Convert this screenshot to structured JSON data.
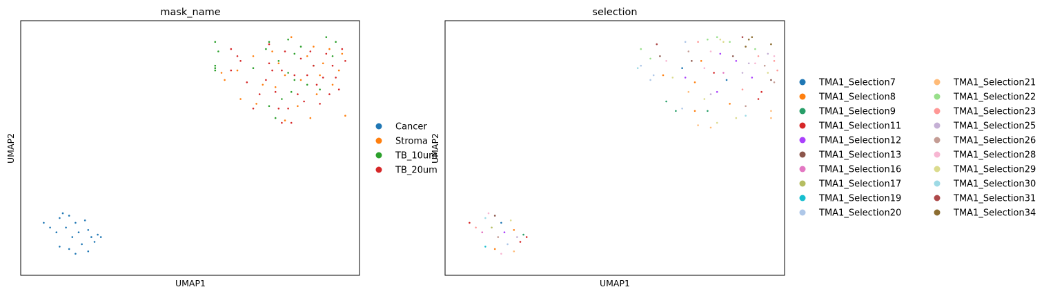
{
  "palette": {
    "Cancer": "#1f77b4",
    "Stroma": "#ff7f0e",
    "TB_10um": "#2ca02c",
    "TB_20um": "#d62728",
    "TMA1_Selection7": "#1f77b4",
    "TMA1_Selection8": "#ff7f0e",
    "TMA1_Selection9": "#279e68",
    "TMA1_Selection11": "#d62728",
    "TMA1_Selection12": "#aa40fc",
    "TMA1_Selection13": "#8c564b",
    "TMA1_Selection16": "#e377c2",
    "TMA1_Selection17": "#b5bd61",
    "TMA1_Selection19": "#17becf",
    "TMA1_Selection20": "#aec7e8",
    "TMA1_Selection21": "#ffbb78",
    "TMA1_Selection22": "#98df8a",
    "TMA1_Selection23": "#ff9896",
    "TMA1_Selection25": "#c5b0d5",
    "TMA1_Selection26": "#c49c94",
    "TMA1_Selection28": "#f7b6d2",
    "TMA1_Selection29": "#dbdb8d",
    "TMA1_Selection30": "#9edae5",
    "TMA1_Selection31": "#ad494a",
    "TMA1_Selection34": "#8c6d31"
  },
  "chart_data": [
    {
      "type": "scatter",
      "title": "mask_name",
      "xlabel": "UMAP1",
      "ylabel": "UMAP2",
      "xlim": [
        0,
        100
      ],
      "ylim": [
        0,
        100
      ],
      "grid": false,
      "legend_placement": "right",
      "legend": [
        "Cancer",
        "Stroma",
        "TB_10um",
        "TB_20um"
      ],
      "points": [
        [
          4,
          18,
          "Cancer"
        ],
        [
          6,
          16,
          "Cancer"
        ],
        [
          9,
          20,
          "Cancer"
        ],
        [
          10,
          22,
          "Cancer"
        ],
        [
          12,
          21,
          "Cancer"
        ],
        [
          8,
          14,
          "Cancer"
        ],
        [
          11,
          16,
          "Cancer"
        ],
        [
          14,
          18,
          "Cancer"
        ],
        [
          15,
          14,
          "Cancer"
        ],
        [
          17,
          19,
          "Cancer"
        ],
        [
          18,
          15,
          "Cancer"
        ],
        [
          19,
          12,
          "Cancer"
        ],
        [
          20,
          10,
          "Cancer"
        ],
        [
          13,
          12,
          "Cancer"
        ],
        [
          9,
          8,
          "Cancer"
        ],
        [
          12,
          7,
          "Cancer"
        ],
        [
          16,
          9,
          "Cancer"
        ],
        [
          18,
          6,
          "Cancer"
        ],
        [
          14,
          5,
          "Cancer"
        ],
        [
          22,
          12,
          "Cancer"
        ],
        [
          21,
          13,
          "Cancer"
        ],
        [
          65,
          82,
          "Stroma"
        ],
        [
          70,
          88,
          "Stroma"
        ],
        [
          73,
          76,
          "Stroma"
        ],
        [
          76,
          90,
          "Stroma"
        ],
        [
          78,
          85,
          "Stroma"
        ],
        [
          80,
          80,
          "Stroma"
        ],
        [
          82,
          96,
          "Stroma"
        ],
        [
          85,
          78,
          "Stroma"
        ],
        [
          87,
          88,
          "Stroma"
        ],
        [
          90,
          72,
          "Stroma"
        ],
        [
          92,
          85,
          "Stroma"
        ],
        [
          94,
          91,
          "Stroma"
        ],
        [
          97,
          82,
          "Stroma"
        ],
        [
          98,
          89,
          "Stroma"
        ],
        [
          95,
          76,
          "Stroma"
        ],
        [
          60,
          81,
          "Stroma"
        ],
        [
          61,
          78,
          "Stroma"
        ],
        [
          66,
          70,
          "Stroma"
        ],
        [
          71,
          68,
          "Stroma"
        ],
        [
          77,
          75,
          "Stroma"
        ],
        [
          80,
          61,
          "Stroma"
        ],
        [
          84,
          67,
          "Stroma"
        ],
        [
          88,
          62,
          "Stroma"
        ],
        [
          91,
          80,
          "Stroma"
        ],
        [
          99,
          63,
          "Stroma"
        ],
        [
          89,
          92,
          "Stroma"
        ],
        [
          58,
          83,
          "TB_10um"
        ],
        [
          58,
          82,
          "TB_10um"
        ],
        [
          58,
          84,
          "TB_10um"
        ],
        [
          58,
          94,
          "TB_10um"
        ],
        [
          59,
          90,
          "TB_10um"
        ],
        [
          70,
          83,
          "TB_10um"
        ],
        [
          74,
          91,
          "TB_10um"
        ],
        [
          75,
          67,
          "TB_10um"
        ],
        [
          75,
          94,
          "TB_10um"
        ],
        [
          78,
          86,
          "TB_10um"
        ],
        [
          81,
          95,
          "TB_10um"
        ],
        [
          81,
          81,
          "TB_10um"
        ],
        [
          82,
          73,
          "TB_10um"
        ],
        [
          83,
          78,
          "TB_10um"
        ],
        [
          85,
          92,
          "TB_10um"
        ],
        [
          87,
          76,
          "TB_10um"
        ],
        [
          89,
          84,
          "TB_10um"
        ],
        [
          91,
          74,
          "TB_10um"
        ],
        [
          93,
          96,
          "TB_10um"
        ],
        [
          95,
          88,
          "TB_10um"
        ],
        [
          96,
          94,
          "TB_10um"
        ],
        [
          77,
          62,
          "TB_10um"
        ],
        [
          79,
          70,
          "TB_10um"
        ],
        [
          83,
          89,
          "TB_10um"
        ],
        [
          63,
          82,
          "TB_20um"
        ],
        [
          63,
          91,
          "TB_20um"
        ],
        [
          65,
          88,
          "TB_20um"
        ],
        [
          66,
          86,
          "TB_20um"
        ],
        [
          68,
          77,
          "TB_20um"
        ],
        [
          70,
          66,
          "TB_20um"
        ],
        [
          72,
          72,
          "TB_20um"
        ],
        [
          74,
          78,
          "TB_20um"
        ],
        [
          75,
          85,
          "TB_20um"
        ],
        [
          75,
          93,
          "TB_20um"
        ],
        [
          76,
          82,
          "TB_20um"
        ],
        [
          77,
          73,
          "TB_20um"
        ],
        [
          78,
          66,
          "TB_20um"
        ],
        [
          79,
          82,
          "TB_20um"
        ],
        [
          80,
          90,
          "TB_20um"
        ],
        [
          81,
          66,
          "TB_20um"
        ],
        [
          83,
          80,
          "TB_20um"
        ],
        [
          84,
          72,
          "TB_20um"
        ],
        [
          85,
          87,
          "TB_20um"
        ],
        [
          86,
          69,
          "TB_20um"
        ],
        [
          87,
          80,
          "TB_20um"
        ],
        [
          88,
          90,
          "TB_20um"
        ],
        [
          89,
          84,
          "TB_20um"
        ],
        [
          90,
          76,
          "TB_20um"
        ],
        [
          91,
          68,
          "TB_20um"
        ],
        [
          92,
          79,
          "TB_20um"
        ],
        [
          93,
          89,
          "TB_20um"
        ],
        [
          94,
          72,
          "TB_20um"
        ],
        [
          95,
          84,
          "TB_20um"
        ],
        [
          96,
          79,
          "TB_20um"
        ],
        [
          97,
          74,
          "TB_20um"
        ],
        [
          98,
          91,
          "TB_20um"
        ],
        [
          99,
          86,
          "TB_20um"
        ],
        [
          79,
          60,
          "TB_20um"
        ],
        [
          82,
          60,
          "TB_20um"
        ]
      ]
    },
    {
      "type": "scatter",
      "title": "selection",
      "xlabel": "UMAP1",
      "ylabel": "UMAP2",
      "xlim": [
        0,
        100
      ],
      "ylim": [
        0,
        100
      ],
      "grid": false,
      "legend_placement": "right",
      "legend": [
        "TMA1_Selection7",
        "TMA1_Selection8",
        "TMA1_Selection9",
        "TMA1_Selection11",
        "TMA1_Selection12",
        "TMA1_Selection13",
        "TMA1_Selection16",
        "TMA1_Selection17",
        "TMA1_Selection19",
        "TMA1_Selection20",
        "TMA1_Selection21",
        "TMA1_Selection22",
        "TMA1_Selection23",
        "TMA1_Selection25",
        "TMA1_Selection26",
        "TMA1_Selection28",
        "TMA1_Selection29",
        "TMA1_Selection30",
        "TMA1_Selection31",
        "TMA1_Selection34"
      ],
      "points": [
        [
          4,
          18,
          "TMA1_Selection11"
        ],
        [
          6,
          16,
          "TMA1_Selection23"
        ],
        [
          9,
          20,
          "TMA1_Selection30"
        ],
        [
          10,
          22,
          "TMA1_Selection28"
        ],
        [
          12,
          21,
          "TMA1_Selection13"
        ],
        [
          8,
          14,
          "TMA1_Selection16"
        ],
        [
          11,
          16,
          "TMA1_Selection17"
        ],
        [
          14,
          18,
          "TMA1_Selection7"
        ],
        [
          15,
          14,
          "TMA1_Selection12"
        ],
        [
          17,
          19,
          "TMA1_Selection29"
        ],
        [
          18,
          15,
          "TMA1_Selection8"
        ],
        [
          19,
          12,
          "TMA1_Selection25"
        ],
        [
          20,
          10,
          "TMA1_Selection11"
        ],
        [
          13,
          12,
          "TMA1_Selection26"
        ],
        [
          9,
          8,
          "TMA1_Selection19"
        ],
        [
          12,
          7,
          "TMA1_Selection8"
        ],
        [
          16,
          9,
          "TMA1_Selection20"
        ],
        [
          18,
          6,
          "TMA1_Selection21"
        ],
        [
          14,
          5,
          "TMA1_Selection28"
        ],
        [
          22,
          12,
          "TMA1_Selection11"
        ],
        [
          21,
          13,
          "TMA1_Selection9"
        ],
        [
          57,
          83,
          "TMA1_Selection30"
        ],
        [
          58,
          84,
          "TMA1_Selection20"
        ],
        [
          58,
          91,
          "TMA1_Selection22"
        ],
        [
          61,
          87,
          "TMA1_Selection22"
        ],
        [
          61,
          78,
          "TMA1_Selection20"
        ],
        [
          62,
          80,
          "TMA1_Selection20"
        ],
        [
          63,
          93,
          "TMA1_Selection31"
        ],
        [
          64,
          88,
          "TMA1_Selection13"
        ],
        [
          65,
          80,
          "TMA1_Selection8"
        ],
        [
          66,
          86,
          "TMA1_Selection28"
        ],
        [
          66,
          69,
          "TMA1_Selection9"
        ],
        [
          68,
          79,
          "TMA1_Selection29"
        ],
        [
          69,
          65,
          "TMA1_Selection9"
        ],
        [
          71,
          66,
          "TMA1_Selection20"
        ],
        [
          71,
          83,
          "TMA1_Selection7"
        ],
        [
          72,
          79,
          "TMA1_Selection12"
        ],
        [
          72,
          94,
          "TMA1_Selection20"
        ],
        [
          73,
          90,
          "TMA1_Selection26"
        ],
        [
          73,
          73,
          "TMA1_Selection21"
        ],
        [
          74,
          86,
          "TMA1_Selection13"
        ],
        [
          75,
          77,
          "TMA1_Selection8"
        ],
        [
          75,
          65,
          "TMA1_Selection8"
        ],
        [
          76,
          94,
          "TMA1_Selection23"
        ],
        [
          76,
          59,
          "TMA1_Selection21"
        ],
        [
          77,
          86,
          "TMA1_Selection8"
        ],
        [
          78,
          70,
          "TMA1_Selection29"
        ],
        [
          78,
          83,
          "TMA1_Selection28"
        ],
        [
          79,
          65,
          "TMA1_Selection9"
        ],
        [
          79,
          95,
          "TMA1_Selection22"
        ],
        [
          80,
          58,
          "TMA1_Selection21"
        ],
        [
          80,
          72,
          "TMA1_Selection25"
        ],
        [
          80,
          90,
          "TMA1_Selection28"
        ],
        [
          81,
          81,
          "TMA1_Selection11"
        ],
        [
          82,
          60,
          "TMA1_Selection29"
        ],
        [
          82,
          73,
          "TMA1_Selection12"
        ],
        [
          82,
          96,
          "TMA1_Selection22"
        ],
        [
          83,
          89,
          "TMA1_Selection12"
        ],
        [
          84,
          81,
          "TMA1_Selection16"
        ],
        [
          85,
          78,
          "TMA1_Selection7"
        ],
        [
          86,
          68,
          "TMA1_Selection8"
        ],
        [
          86,
          94,
          "TMA1_Selection22"
        ],
        [
          87,
          88,
          "TMA1_Selection13"
        ],
        [
          88,
          62,
          "TMA1_Selection29"
        ],
        [
          88,
          86,
          "TMA1_Selection12"
        ],
        [
          90,
          81,
          "TMA1_Selection25"
        ],
        [
          90,
          74,
          "TMA1_Selection23"
        ],
        [
          91,
          67,
          "TMA1_Selection26"
        ],
        [
          91,
          63,
          "TMA1_Selection30"
        ],
        [
          92,
          85,
          "TMA1_Selection25"
        ],
        [
          93,
          79,
          "TMA1_Selection12"
        ],
        [
          94,
          91,
          "TMA1_Selection22"
        ],
        [
          95,
          70,
          "TMA1_Selection11"
        ],
        [
          96,
          73,
          "TMA1_Selection11"
        ],
        [
          97,
          84,
          "TMA1_Selection26"
        ],
        [
          98,
          81,
          "TMA1_Selection29"
        ],
        [
          99,
          65,
          "TMA1_Selection21"
        ],
        [
          99,
          62,
          "TMA1_Selection21"
        ],
        [
          100,
          86,
          "TMA1_Selection23"
        ],
        [
          99,
          93,
          "TMA1_Selection34"
        ],
        [
          98,
          89,
          "TMA1_Selection25"
        ],
        [
          90,
          96,
          "TMA1_Selection31"
        ],
        [
          91,
          92,
          "TMA1_Selection34"
        ],
        [
          92,
          95,
          "TMA1_Selection34"
        ],
        [
          93,
          96,
          "TMA1_Selection34"
        ],
        [
          100,
          88,
          "TMA1_Selection28"
        ],
        [
          101,
          82,
          "TMA1_Selection23"
        ],
        [
          100,
          77,
          "TMA1_Selection26"
        ],
        [
          99,
          78,
          "TMA1_Selection13"
        ],
        [
          84,
          94,
          "TMA1_Selection29"
        ],
        [
          83,
          95,
          "TMA1_Selection29"
        ],
        [
          95,
          88,
          "TMA1_Selection23"
        ],
        [
          94,
          85,
          "TMA1_Selection28"
        ]
      ]
    }
  ]
}
